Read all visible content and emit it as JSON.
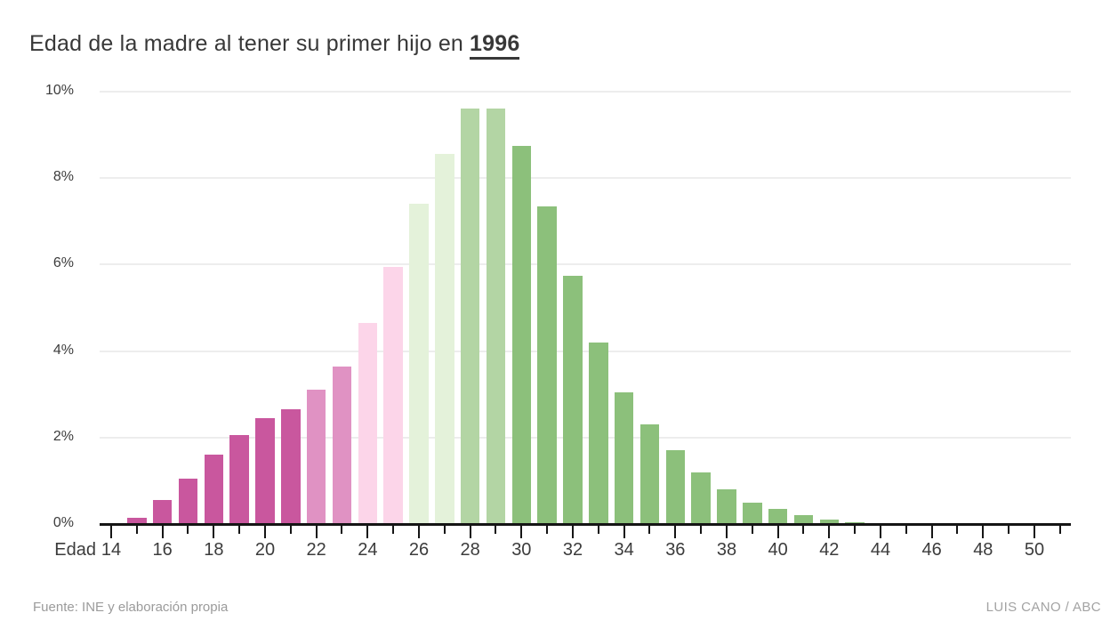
{
  "header": {
    "title_prefix": "Edad de la madre al tener su primer hijo en",
    "title_year": "1996"
  },
  "chart_data": {
    "type": "bar",
    "title": "Edad de la madre al tener su primer hijo en 1996",
    "xlabel": "Edad",
    "ylabel": "",
    "ylim": [
      0,
      10
    ],
    "grid": "horizontal",
    "legend": "none",
    "y_ticks": [
      {
        "value": 0,
        "label": "0%"
      },
      {
        "value": 2,
        "label": "2%"
      },
      {
        "value": 4,
        "label": "4%"
      },
      {
        "value": 6,
        "label": "6%"
      },
      {
        "value": 8,
        "label": "8%"
      },
      {
        "value": 10,
        "label": "10%"
      }
    ],
    "x_axis": {
      "min": 14,
      "max": 51,
      "labeled_ticks": [
        14,
        16,
        18,
        20,
        22,
        24,
        26,
        28,
        30,
        32,
        34,
        36,
        38,
        40,
        42,
        44,
        46,
        48,
        50
      ]
    },
    "bars": [
      {
        "age": 15,
        "value": 0.15,
        "color": "#c9579e"
      },
      {
        "age": 16,
        "value": 0.55,
        "color": "#c9579e"
      },
      {
        "age": 17,
        "value": 1.05,
        "color": "#c9579e"
      },
      {
        "age": 18,
        "value": 1.6,
        "color": "#c9579e"
      },
      {
        "age": 19,
        "value": 2.05,
        "color": "#c9579e"
      },
      {
        "age": 20,
        "value": 2.45,
        "color": "#c9579e"
      },
      {
        "age": 21,
        "value": 2.65,
        "color": "#c9579e"
      },
      {
        "age": 22,
        "value": 3.1,
        "color": "#e092c3"
      },
      {
        "age": 23,
        "value": 3.65,
        "color": "#e092c3"
      },
      {
        "age": 24,
        "value": 4.65,
        "color": "#fcd5e9"
      },
      {
        "age": 25,
        "value": 5.95,
        "color": "#fcd5e9"
      },
      {
        "age": 26,
        "value": 7.4,
        "color": "#e4f2da"
      },
      {
        "age": 27,
        "value": 8.55,
        "color": "#e4f2da"
      },
      {
        "age": 28,
        "value": 9.6,
        "color": "#b3d5a4"
      },
      {
        "age": 29,
        "value": 9.6,
        "color": "#b3d5a4"
      },
      {
        "age": 30,
        "value": 8.75,
        "color": "#8cc07b"
      },
      {
        "age": 31,
        "value": 7.35,
        "color": "#8cc07b"
      },
      {
        "age": 32,
        "value": 5.75,
        "color": "#8cc07b"
      },
      {
        "age": 33,
        "value": 4.2,
        "color": "#8cc07b"
      },
      {
        "age": 34,
        "value": 3.05,
        "color": "#8cc07b"
      },
      {
        "age": 35,
        "value": 2.3,
        "color": "#8cc07b"
      },
      {
        "age": 36,
        "value": 1.7,
        "color": "#8cc07b"
      },
      {
        "age": 37,
        "value": 1.2,
        "color": "#8cc07b"
      },
      {
        "age": 38,
        "value": 0.8,
        "color": "#8cc07b"
      },
      {
        "age": 39,
        "value": 0.5,
        "color": "#8cc07b"
      },
      {
        "age": 40,
        "value": 0.35,
        "color": "#8cc07b"
      },
      {
        "age": 41,
        "value": 0.2,
        "color": "#8cc07b"
      },
      {
        "age": 42,
        "value": 0.1,
        "color": "#8cc07b"
      },
      {
        "age": 43,
        "value": 0.05,
        "color": "#8cc07b"
      }
    ],
    "colors": {
      "pink_dark": "#c9579e",
      "pink_mid": "#e092c3",
      "pink_light": "#fcd5e9",
      "green_pale": "#e4f2da",
      "green_light": "#b3d5a4",
      "green_mid": "#8cc07b",
      "axis": "#151515",
      "grid": "#ededed"
    }
  },
  "footer": {
    "source": "Fuente: INE y elaboración propia",
    "credit": "LUIS CANO / ABC"
  }
}
